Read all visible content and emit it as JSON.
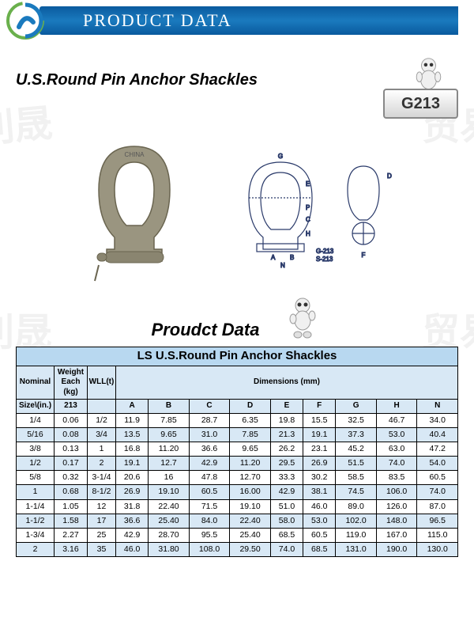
{
  "banner": {
    "text": "PRODUCT DATA"
  },
  "title": "U.S.Round Pin Anchor Shackles",
  "badge": "G213",
  "tableTitle": "Proudct Data",
  "tableMainTitle": "LS U.S.Round Pin Anchor Shackles",
  "headers": {
    "nominal": "Nominal",
    "weight": "Weight Each (kg)",
    "wll": "WLL(t)",
    "dimensions": "Dimensions (mm)",
    "size": "Size\\(in.)",
    "m213": "213",
    "A": "A",
    "B": "B",
    "C": "C",
    "D": "D",
    "E": "E",
    "F": "F",
    "G": "G",
    "H": "H",
    "N": "N"
  },
  "rows": [
    {
      "size": "1/4",
      "wt": "0.06",
      "wll": "1/2",
      "A": "11.9",
      "B": "7.85",
      "C": "28.7",
      "D": "6.35",
      "E": "19.8",
      "F": "15.5",
      "G": "32.5",
      "H": "46.7",
      "N": "34.0"
    },
    {
      "size": "5/16",
      "wt": "0.08",
      "wll": "3/4",
      "A": "13.5",
      "B": "9.65",
      "C": "31.0",
      "D": "7.85",
      "E": "21.3",
      "F": "19.1",
      "G": "37.3",
      "H": "53.0",
      "N": "40.4"
    },
    {
      "size": "3/8",
      "wt": "0.13",
      "wll": "1",
      "A": "16.8",
      "B": "11.20",
      "C": "36.6",
      "D": "9.65",
      "E": "26.2",
      "F": "23.1",
      "G": "45.2",
      "H": "63.0",
      "N": "47.2"
    },
    {
      "size": "1/2",
      "wt": "0.17",
      "wll": "2",
      "A": "19.1",
      "B": "12.7",
      "C": "42.9",
      "D": "11.20",
      "E": "29.5",
      "F": "26.9",
      "G": "51.5",
      "H": "74.0",
      "N": "54.0"
    },
    {
      "size": "5/8",
      "wt": "0.32",
      "wll": "3-1/4",
      "A": "20.6",
      "B": "16",
      "C": "47.8",
      "D": "12.70",
      "E": "33.3",
      "F": "30.2",
      "G": "58.5",
      "H": "83.5",
      "N": "60.5"
    },
    {
      "size": "1",
      "wt": "0.68",
      "wll": "8-1/2",
      "A": "26.9",
      "B": "19.10",
      "C": "60.5",
      "D": "16.00",
      "E": "42.9",
      "F": "38.1",
      "G": "74.5",
      "H": "106.0",
      "N": "74.0"
    },
    {
      "size": "1-1/4",
      "wt": "1.05",
      "wll": "12",
      "A": "31.8",
      "B": "22.40",
      "C": "71.5",
      "D": "19.10",
      "E": "51.0",
      "F": "46.0",
      "G": "89.0",
      "H": "126.0",
      "N": "87.0"
    },
    {
      "size": "1-1/2",
      "wt": "1.58",
      "wll": "17",
      "A": "36.6",
      "B": "25.40",
      "C": "84.0",
      "D": "22.40",
      "E": "58.0",
      "F": "53.0",
      "G": "102.0",
      "H": "148.0",
      "N": "96.5"
    },
    {
      "size": "1-3/4",
      "wt": "2.27",
      "wll": "25",
      "A": "42.9",
      "B": "28.70",
      "C": "95.5",
      "D": "25.40",
      "E": "68.5",
      "F": "60.5",
      "G": "119.0",
      "H": "167.0",
      "N": "115.0"
    },
    {
      "size": "2",
      "wt": "3.16",
      "wll": "35",
      "A": "46.0",
      "B": "31.80",
      "C": "108.0",
      "D": "29.50",
      "E": "74.0",
      "F": "68.5",
      "G": "131.0",
      "H": "190.0",
      "N": "130.0"
    }
  ],
  "colors": {
    "bannerGrad1": "#0a5a9e",
    "bannerGrad2": "#1a7abe",
    "tableHeader": "#b8d8f0",
    "rowHdr": "#d8e8f5"
  }
}
